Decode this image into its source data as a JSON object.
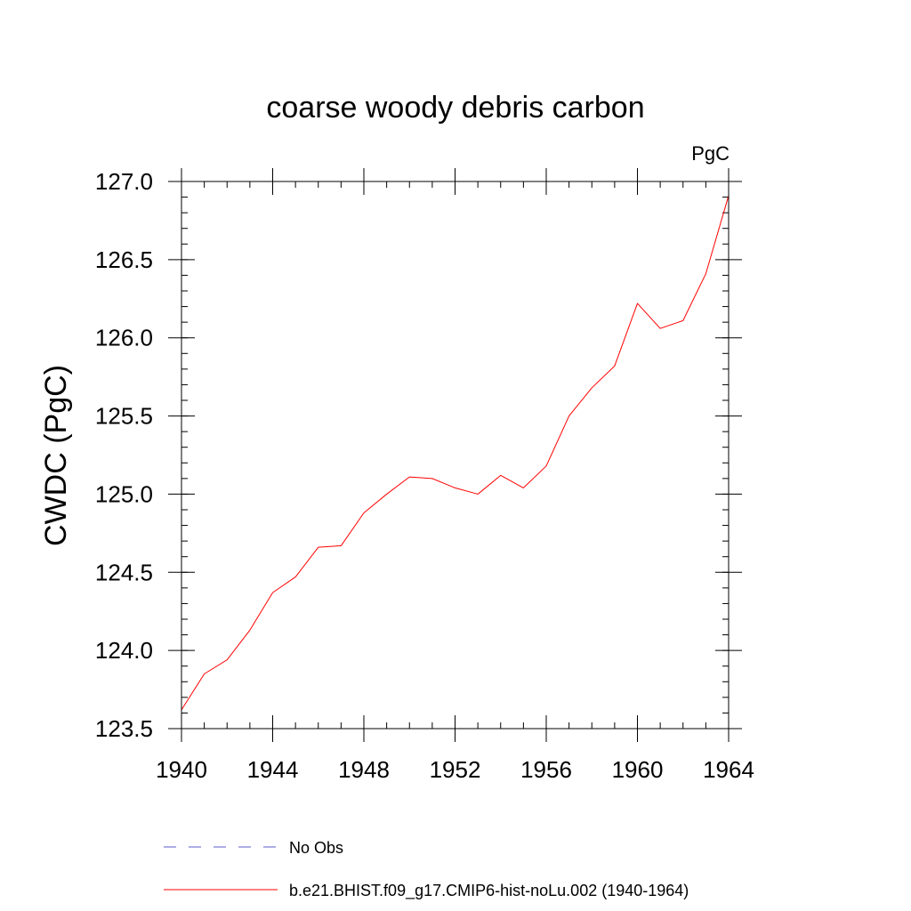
{
  "chart_data": {
    "type": "line",
    "title": "coarse woody debris carbon",
    "units": "PgC",
    "ylabel": "CWDC  (PgC)",
    "xlabel": "",
    "xlim": [
      1940,
      1964
    ],
    "ylim": [
      123.5,
      127.0
    ],
    "x_major_ticks": [
      1940,
      1944,
      1948,
      1952,
      1956,
      1960,
      1964
    ],
    "x_minor_step": 1,
    "y_major_ticks": [
      123.5,
      124.0,
      124.5,
      125.0,
      125.5,
      126.0,
      126.5,
      127.0
    ],
    "y_minor_step": 0.1,
    "grid": false,
    "legend_placement": "bottom",
    "series": [
      {
        "name": "b.e21.BHIST.f09_g17.CMIP6-hist-noLu.002 (1940-1964)",
        "color": "#ff0000",
        "style": "solid",
        "x": [
          1940,
          1941,
          1942,
          1943,
          1944,
          1945,
          1946,
          1947,
          1948,
          1949,
          1950,
          1951,
          1952,
          1953,
          1954,
          1955,
          1956,
          1957,
          1958,
          1959,
          1960,
          1961,
          1962,
          1963,
          1964
        ],
        "values": [
          123.62,
          123.85,
          123.94,
          124.13,
          124.37,
          124.47,
          124.66,
          124.67,
          124.88,
          125.0,
          125.11,
          125.1,
          125.04,
          125.0,
          125.12,
          125.04,
          125.18,
          125.5,
          125.68,
          125.82,
          126.22,
          126.06,
          126.11,
          126.41,
          126.91
        ]
      }
    ],
    "legend": [
      {
        "label": "No Obs",
        "color": "#5b5bc8",
        "style": "dashed"
      },
      {
        "label": "b.e21.BHIST.f09_g17.CMIP6-hist-noLu.002 (1940-1964)",
        "color": "#ff0000",
        "style": "solid"
      }
    ]
  }
}
